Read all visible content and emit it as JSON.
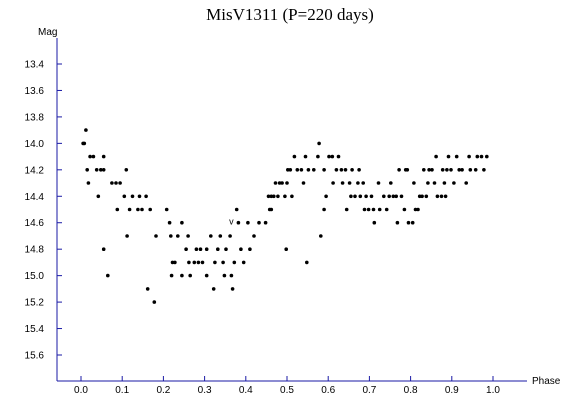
{
  "chart_data": {
    "type": "scatter",
    "title": "MisV1311 (P=220 days)",
    "xlabel": "Phase",
    "ylabel": "Mag",
    "xlim": [
      -0.1,
      1.05
    ],
    "ylim": [
      13.2,
      15.8
    ],
    "y_inverted": true,
    "x_ticks": [
      "0.0",
      "0.1",
      "0.2",
      "0.3",
      "0.4",
      "0.5",
      "0.6",
      "0.7",
      "0.8",
      "0.9",
      "1.0"
    ],
    "y_ticks": [
      "13.4",
      "13.6",
      "13.8",
      "14.0",
      "14.2",
      "14.4",
      "14.6",
      "14.8",
      "15.0",
      "15.2",
      "15.4",
      "15.6"
    ],
    "grid": false,
    "annotations": [
      {
        "text": "v",
        "x": 0.365,
        "y": 14.6
      }
    ],
    "series": [
      {
        "points": [
          [
            0.005,
            14.0
          ],
          [
            0.008,
            14.0
          ],
          [
            0.012,
            13.9
          ],
          [
            0.015,
            14.2
          ],
          [
            0.018,
            14.3
          ],
          [
            0.022,
            14.1
          ],
          [
            0.03,
            14.1
          ],
          [
            0.038,
            14.2
          ],
          [
            0.042,
            14.4
          ],
          [
            0.048,
            14.2
          ],
          [
            0.055,
            14.1
          ],
          [
            0.055,
            14.8
          ],
          [
            0.055,
            14.2
          ],
          [
            0.065,
            15.0
          ],
          [
            0.075,
            14.3
          ],
          [
            0.085,
            14.3
          ],
          [
            0.088,
            14.5
          ],
          [
            0.095,
            14.3
          ],
          [
            0.105,
            14.4
          ],
          [
            0.11,
            14.2
          ],
          [
            0.112,
            14.7
          ],
          [
            0.118,
            14.5
          ],
          [
            0.125,
            14.4
          ],
          [
            0.138,
            14.5
          ],
          [
            0.142,
            14.4
          ],
          [
            0.148,
            14.5
          ],
          [
            0.158,
            14.4
          ],
          [
            0.162,
            15.1
          ],
          [
            0.168,
            14.5
          ],
          [
            0.178,
            15.2
          ],
          [
            0.182,
            14.7
          ],
          [
            0.208,
            14.5
          ],
          [
            0.215,
            14.6
          ],
          [
            0.218,
            14.7
          ],
          [
            0.22,
            15.0
          ],
          [
            0.222,
            14.9
          ],
          [
            0.228,
            14.9
          ],
          [
            0.235,
            14.7
          ],
          [
            0.245,
            14.6
          ],
          [
            0.245,
            15.0
          ],
          [
            0.255,
            14.8
          ],
          [
            0.26,
            14.7
          ],
          [
            0.262,
            14.9
          ],
          [
            0.265,
            15.0
          ],
          [
            0.275,
            14.9
          ],
          [
            0.28,
            14.8
          ],
          [
            0.285,
            14.9
          ],
          [
            0.29,
            14.8
          ],
          [
            0.295,
            14.9
          ],
          [
            0.305,
            15.0
          ],
          [
            0.305,
            14.8
          ],
          [
            0.315,
            14.7
          ],
          [
            0.322,
            15.1
          ],
          [
            0.325,
            14.9
          ],
          [
            0.332,
            14.8
          ],
          [
            0.338,
            14.7
          ],
          [
            0.345,
            14.9
          ],
          [
            0.348,
            15.0
          ],
          [
            0.352,
            14.8
          ],
          [
            0.362,
            14.7
          ],
          [
            0.365,
            15.0
          ],
          [
            0.368,
            15.1
          ],
          [
            0.372,
            14.9
          ],
          [
            0.378,
            14.5
          ],
          [
            0.382,
            14.6
          ],
          [
            0.388,
            14.8
          ],
          [
            0.395,
            14.9
          ],
          [
            0.405,
            14.6
          ],
          [
            0.41,
            14.8
          ],
          [
            0.42,
            14.7
          ],
          [
            0.432,
            14.6
          ],
          [
            0.448,
            14.6
          ],
          [
            0.455,
            14.4
          ],
          [
            0.458,
            14.5
          ],
          [
            0.462,
            14.5
          ],
          [
            0.462,
            14.4
          ],
          [
            0.468,
            14.4
          ],
          [
            0.472,
            14.3
          ],
          [
            0.478,
            14.4
          ],
          [
            0.482,
            14.3
          ],
          [
            0.488,
            14.3
          ],
          [
            0.495,
            14.4
          ],
          [
            0.498,
            14.8
          ],
          [
            0.5,
            14.3
          ],
          [
            0.502,
            14.2
          ],
          [
            0.508,
            14.2
          ],
          [
            0.512,
            14.4
          ],
          [
            0.518,
            14.1
          ],
          [
            0.525,
            14.2
          ],
          [
            0.535,
            14.2
          ],
          [
            0.54,
            14.3
          ],
          [
            0.545,
            14.1
          ],
          [
            0.548,
            14.9
          ],
          [
            0.552,
            14.2
          ],
          [
            0.565,
            14.2
          ],
          [
            0.575,
            14.1
          ],
          [
            0.578,
            14.0
          ],
          [
            0.582,
            14.7
          ],
          [
            0.59,
            14.5
          ],
          [
            0.59,
            14.2
          ],
          [
            0.595,
            14.4
          ],
          [
            0.602,
            14.1
          ],
          [
            0.61,
            14.1
          ],
          [
            0.612,
            14.3
          ],
          [
            0.62,
            14.2
          ],
          [
            0.625,
            14.1
          ],
          [
            0.632,
            14.2
          ],
          [
            0.635,
            14.3
          ],
          [
            0.642,
            14.2
          ],
          [
            0.645,
            14.5
          ],
          [
            0.652,
            14.3
          ],
          [
            0.655,
            14.4
          ],
          [
            0.658,
            14.2
          ],
          [
            0.665,
            14.4
          ],
          [
            0.672,
            14.3
          ],
          [
            0.675,
            14.2
          ],
          [
            0.678,
            14.4
          ],
          [
            0.685,
            14.3
          ],
          [
            0.688,
            14.5
          ],
          [
            0.692,
            14.4
          ],
          [
            0.698,
            14.5
          ],
          [
            0.705,
            14.4
          ],
          [
            0.71,
            14.5
          ],
          [
            0.712,
            14.6
          ],
          [
            0.722,
            14.3
          ],
          [
            0.725,
            14.5
          ],
          [
            0.735,
            14.4
          ],
          [
            0.742,
            14.5
          ],
          [
            0.748,
            14.4
          ],
          [
            0.752,
            14.3
          ],
          [
            0.758,
            14.4
          ],
          [
            0.765,
            14.4
          ],
          [
            0.768,
            14.6
          ],
          [
            0.772,
            14.2
          ],
          [
            0.778,
            14.4
          ],
          [
            0.785,
            14.5
          ],
          [
            0.788,
            14.2
          ],
          [
            0.792,
            14.2
          ],
          [
            0.795,
            14.6
          ],
          [
            0.805,
            14.6
          ],
          [
            0.808,
            14.3
          ],
          [
            0.812,
            14.5
          ],
          [
            0.818,
            14.5
          ],
          [
            0.822,
            14.4
          ],
          [
            0.828,
            14.4
          ],
          [
            0.832,
            14.2
          ],
          [
            0.838,
            14.4
          ],
          [
            0.842,
            14.3
          ],
          [
            0.845,
            14.2
          ],
          [
            0.852,
            14.2
          ],
          [
            0.858,
            14.3
          ],
          [
            0.862,
            14.1
          ],
          [
            0.865,
            14.4
          ],
          [
            0.875,
            14.4
          ],
          [
            0.878,
            14.2
          ],
          [
            0.882,
            14.3
          ],
          [
            0.885,
            14.4
          ],
          [
            0.888,
            14.2
          ],
          [
            0.892,
            14.1
          ],
          [
            0.898,
            14.2
          ],
          [
            0.905,
            14.3
          ],
          [
            0.912,
            14.1
          ],
          [
            0.918,
            14.2
          ],
          [
            0.925,
            14.2
          ],
          [
            0.935,
            14.3
          ],
          [
            0.942,
            14.1
          ],
          [
            0.945,
            14.2
          ],
          [
            0.958,
            14.2
          ],
          [
            0.962,
            14.1
          ],
          [
            0.972,
            14.1
          ],
          [
            0.978,
            14.2
          ],
          [
            0.985,
            14.1
          ]
        ]
      }
    ]
  }
}
